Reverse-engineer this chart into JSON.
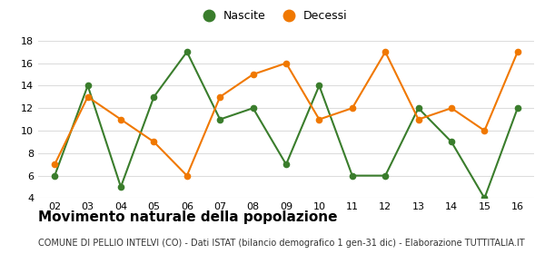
{
  "years": [
    "02",
    "03",
    "04",
    "05",
    "06",
    "07",
    "08",
    "09",
    "10",
    "11",
    "12",
    "13",
    "14",
    "15",
    "16"
  ],
  "nascite": [
    6,
    14,
    5,
    13,
    17,
    11,
    12,
    7,
    14,
    6,
    6,
    12,
    9,
    4,
    12
  ],
  "decessi": [
    7,
    13,
    11,
    9,
    6,
    13,
    15,
    16,
    11,
    12,
    17,
    11,
    12,
    10,
    17
  ],
  "nascite_color": "#3a7d2c",
  "decessi_color": "#f07800",
  "ylim": [
    4,
    18
  ],
  "yticks": [
    4,
    6,
    8,
    10,
    12,
    14,
    16,
    18
  ],
  "title": "Movimento naturale della popolazione",
  "subtitle": "COMUNE DI PELLIO INTELVI (CO) - Dati ISTAT (bilancio demografico 1 gen-31 dic) - Elaborazione TUTTITALIA.IT",
  "legend_nascite": "Nascite",
  "legend_decessi": "Decessi",
  "title_fontsize": 11,
  "subtitle_fontsize": 7,
  "bg_color": "#ffffff",
  "grid_color": "#dddddd"
}
